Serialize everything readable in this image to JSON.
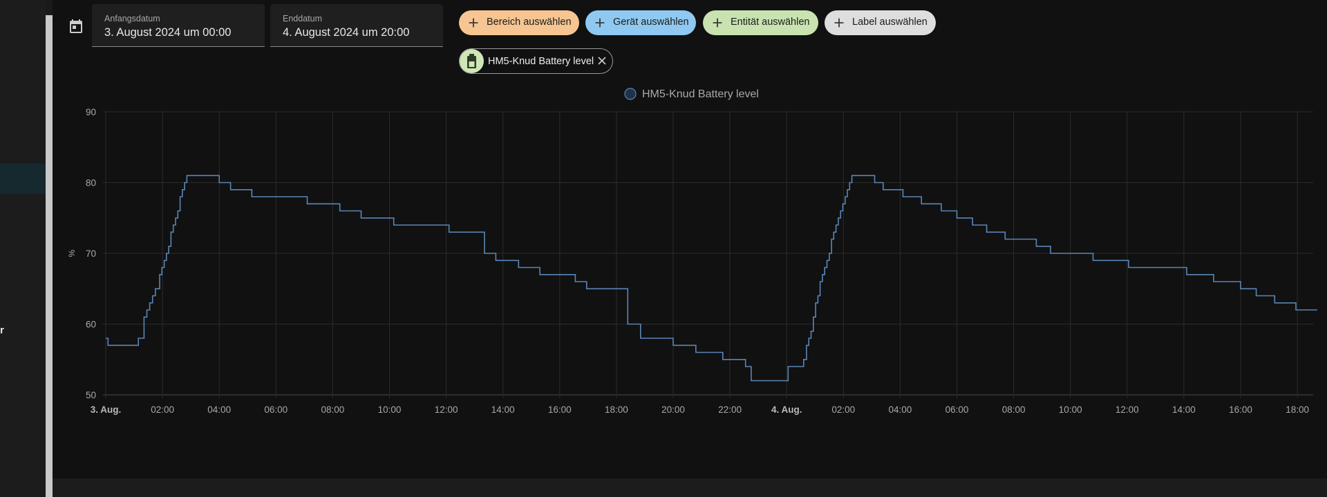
{
  "sidebar": {
    "cut_text": "r"
  },
  "date_range": {
    "start_label": "Anfangsdatum",
    "start_value": "3. August 2024 um 00:00",
    "end_label": "Enddatum",
    "end_value": "4. August 2024 um 20:00"
  },
  "target_picker": {
    "area": "Bereich auswählen",
    "device": "Gerät auswählen",
    "entity": "Entität auswählen",
    "label": "Label auswählen",
    "colors": {
      "area": "#f6c591",
      "device": "#8fc9f1",
      "entity": "#c8e3b0",
      "label": "#dedede"
    }
  },
  "selected_entity": {
    "label": "HM5-Knud Battery level",
    "icon": "battery-icon"
  },
  "chart_data": {
    "type": "line",
    "step": true,
    "ylabel": "%",
    "ylim": [
      50,
      90
    ],
    "yticks": [
      50,
      60,
      70,
      80,
      90
    ],
    "x_range_hours": [
      0,
      42.7
    ],
    "xtick_hours": [
      0,
      2,
      4,
      6,
      8,
      10,
      12,
      14,
      16,
      18,
      20,
      22,
      24,
      26,
      28,
      30,
      32,
      34,
      36,
      38,
      40,
      42
    ],
    "xtick_labels": [
      "3. Aug.",
      "02:00",
      "04:00",
      "06:00",
      "08:00",
      "10:00",
      "12:00",
      "14:00",
      "16:00",
      "18:00",
      "20:00",
      "22:00",
      "4. Aug.",
      "02:00",
      "04:00",
      "06:00",
      "08:00",
      "10:00",
      "12:00",
      "14:00",
      "16:00",
      "18:00"
    ],
    "xtick_bold": [
      true,
      false,
      false,
      false,
      false,
      false,
      false,
      false,
      false,
      false,
      false,
      false,
      true,
      false,
      false,
      false,
      false,
      false,
      false,
      false,
      false,
      false
    ],
    "grid": true,
    "legend_position": "top-center",
    "series": [
      {
        "name": "HM5-Knud Battery level",
        "color": "#5a86b8",
        "x": [
          0,
          0.08,
          1.15,
          1.35,
          1.45,
          1.55,
          1.65,
          1.75,
          1.9,
          1.98,
          2.06,
          2.14,
          2.22,
          2.3,
          2.38,
          2.46,
          2.54,
          2.62,
          2.7,
          2.78,
          2.86,
          2.94,
          3.02,
          3.1,
          3.2,
          3.35,
          4.0,
          4.4,
          5.15,
          7.1,
          8.25,
          9.0,
          10.15,
          12.1,
          13.35,
          13.75,
          14.55,
          15.3,
          16.55,
          16.95,
          18.4,
          18.85,
          20.0,
          20.8,
          21.75,
          22.55,
          22.75,
          24.05,
          24.6,
          24.7,
          24.78,
          24.86,
          24.94,
          25.02,
          25.1,
          25.18,
          25.26,
          25.34,
          25.42,
          25.5,
          25.58,
          25.66,
          25.74,
          25.82,
          25.9,
          25.98,
          26.06,
          26.14,
          26.22,
          26.3,
          26.4,
          26.55,
          27.1,
          27.4,
          28.1,
          28.75,
          29.45,
          30.0,
          30.55,
          31.05,
          31.7,
          32.8,
          33.3,
          34.8,
          36.05,
          38.1,
          39.05,
          40.0,
          40.55,
          41.2,
          41.95,
          42.7
        ],
        "y": [
          58,
          57,
          58,
          61,
          62,
          63,
          64,
          65,
          67,
          68,
          69,
          70,
          71,
          73,
          74,
          75,
          76,
          78,
          79,
          80,
          81,
          81,
          81,
          81,
          81,
          81,
          80,
          79,
          78,
          77,
          76,
          75,
          74,
          73,
          70,
          69,
          68,
          67,
          66,
          65,
          60,
          58,
          57,
          56,
          55,
          54,
          52,
          54,
          55,
          57,
          58,
          59,
          61,
          63,
          64,
          66,
          67,
          68,
          69,
          70,
          72,
          73,
          74,
          75,
          76,
          77,
          78,
          79,
          80,
          81,
          81,
          81,
          80,
          79,
          78,
          77,
          76,
          75,
          74,
          73,
          72,
          71,
          70,
          69,
          68,
          67,
          66,
          65,
          64,
          63,
          62,
          62
        ]
      }
    ]
  }
}
